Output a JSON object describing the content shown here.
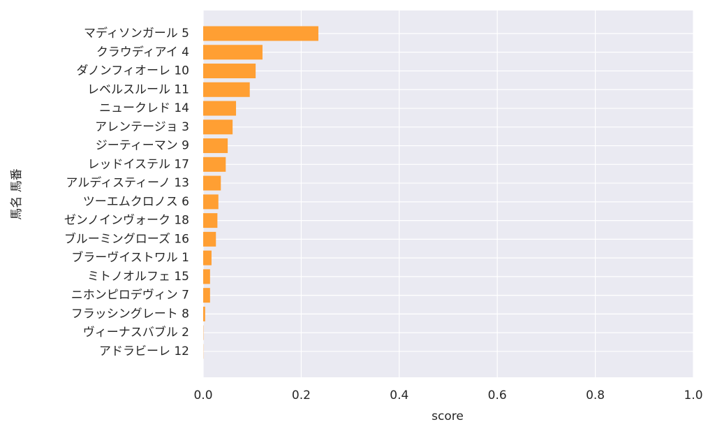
{
  "chart_data": {
    "type": "barh",
    "xlabel": "score",
    "ylabel": "馬名 馬番",
    "categories": [
      "マディソンガール 5",
      "クラウディアイ 4",
      "ダノンフィオーレ 10",
      "レベルスルール 11",
      "ニュークレド 14",
      "アレンテージョ 3",
      "ジーティーマン 9",
      "レッドイステル 17",
      "アルディスティーノ 13",
      "ツーエムクロノス 6",
      "ゼンノインヴォーク 18",
      "ブルーミングローズ 16",
      "ブラーヴイストワル 1",
      "ミトノオルフェ 15",
      "ニホンピロデヴィン 7",
      "フラッシングレート 8",
      "ヴィーナスバブル 2",
      "アドラビーレ 12"
    ],
    "values": [
      0.235,
      0.121,
      0.107,
      0.095,
      0.067,
      0.06,
      0.05,
      0.046,
      0.036,
      0.031,
      0.029,
      0.026,
      0.017,
      0.014,
      0.014,
      0.004,
      0.0005,
      0.0003
    ],
    "color": "#ff9f33",
    "xlim": [
      0,
      1
    ],
    "xticks": [
      {
        "value": 0,
        "label": "0.0"
      },
      0.2,
      0.4,
      0.6,
      0.8,
      {
        "value": 1,
        "label": "1.0"
      }
    ],
    "grid": true
  }
}
